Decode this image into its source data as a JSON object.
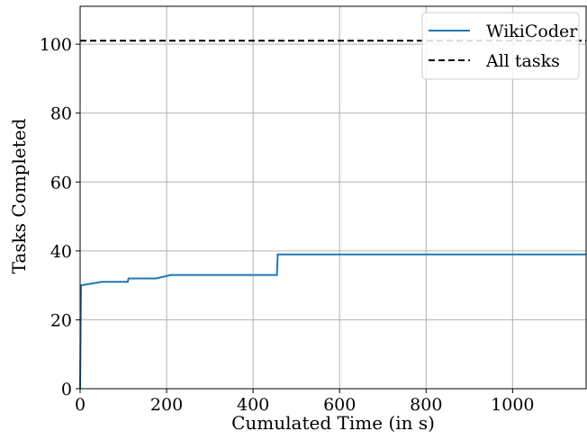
{
  "chart_data": {
    "type": "line",
    "title": "",
    "xlabel": "Cumulated Time (in s)",
    "ylabel": "Tasks Completed",
    "xlim": [
      0,
      1170
    ],
    "ylim": [
      0,
      111
    ],
    "xticks": [
      0,
      200,
      400,
      600,
      800,
      1000
    ],
    "yticks": [
      0,
      20,
      40,
      60,
      80,
      100
    ],
    "grid": true,
    "legend_position": "top-right",
    "series": [
      {
        "name": "WikiCoder",
        "style": "solid-step",
        "color": "#1f77b4",
        "x": [
          0,
          2,
          50,
          110,
          112,
          175,
          210,
          455,
          457,
          1170
        ],
        "y": [
          0,
          30,
          31,
          31,
          32,
          32,
          33,
          33,
          39,
          39
        ]
      },
      {
        "name": "All tasks",
        "style": "dashed",
        "color": "#000000",
        "x": [
          0,
          1170
        ],
        "y": [
          101,
          101
        ]
      }
    ]
  }
}
